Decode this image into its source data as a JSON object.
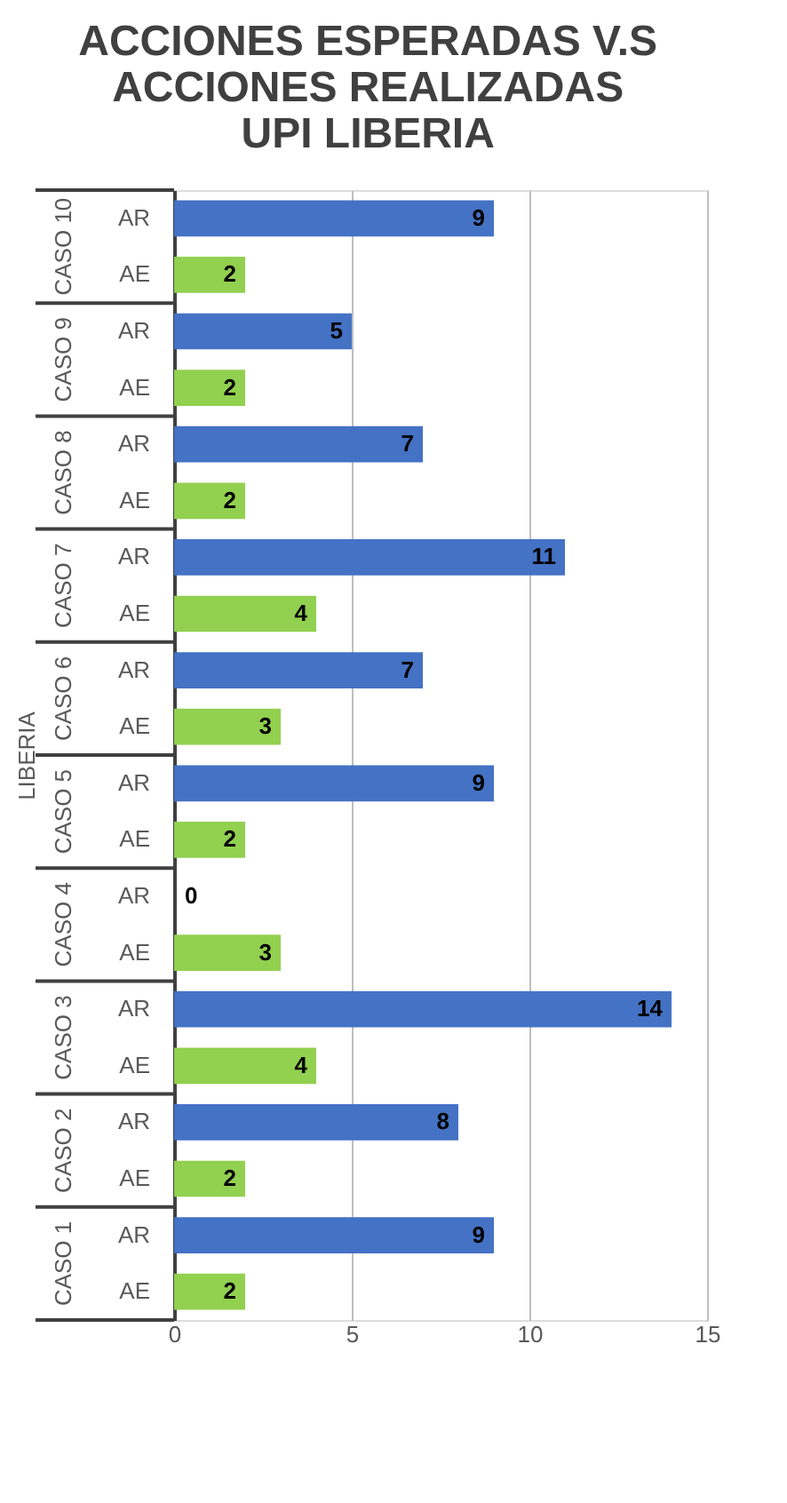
{
  "chart_data": {
    "type": "bar",
    "orientation": "horizontal",
    "title": "ACCIONES ESPERADAS V.S\nACCIONES REALIZADAS\nUPI LIBERIA",
    "ylabel": "LIBERIA",
    "categories": [
      "AR",
      "AE",
      "AR",
      "AE",
      "AR",
      "AE",
      "AR",
      "AE",
      "AR",
      "AE",
      "AR",
      "AE",
      "AR",
      "AE",
      "AR",
      "AE",
      "AR",
      "AE",
      "AR",
      "AE"
    ],
    "values": [
      9,
      2,
      5,
      2,
      7,
      2,
      11,
      4,
      7,
      3,
      9,
      2,
      0,
      3,
      14,
      4,
      8,
      2,
      9,
      2
    ],
    "colors": [
      "#4472c4",
      "#92d050",
      "#4472c4",
      "#92d050",
      "#4472c4",
      "#92d050",
      "#4472c4",
      "#92d050",
      "#4472c4",
      "#92d050",
      "#4472c4",
      "#92d050",
      "#4472c4",
      "#92d050",
      "#4472c4",
      "#92d050",
      "#4472c4",
      "#92d050",
      "#4472c4",
      "#92d050"
    ],
    "annotations": [
      "CASO 10",
      "CASO 9",
      "CASO 8",
      "CASO 7",
      "CASO 6",
      "CASO 5",
      "CASO 4",
      "CASO 3",
      "CASO 2",
      "CASO 1"
    ],
    "xlim": [
      0,
      15
    ],
    "xticks": [
      0,
      5,
      10,
      15
    ],
    "grid": "x",
    "data_labels": true
  }
}
